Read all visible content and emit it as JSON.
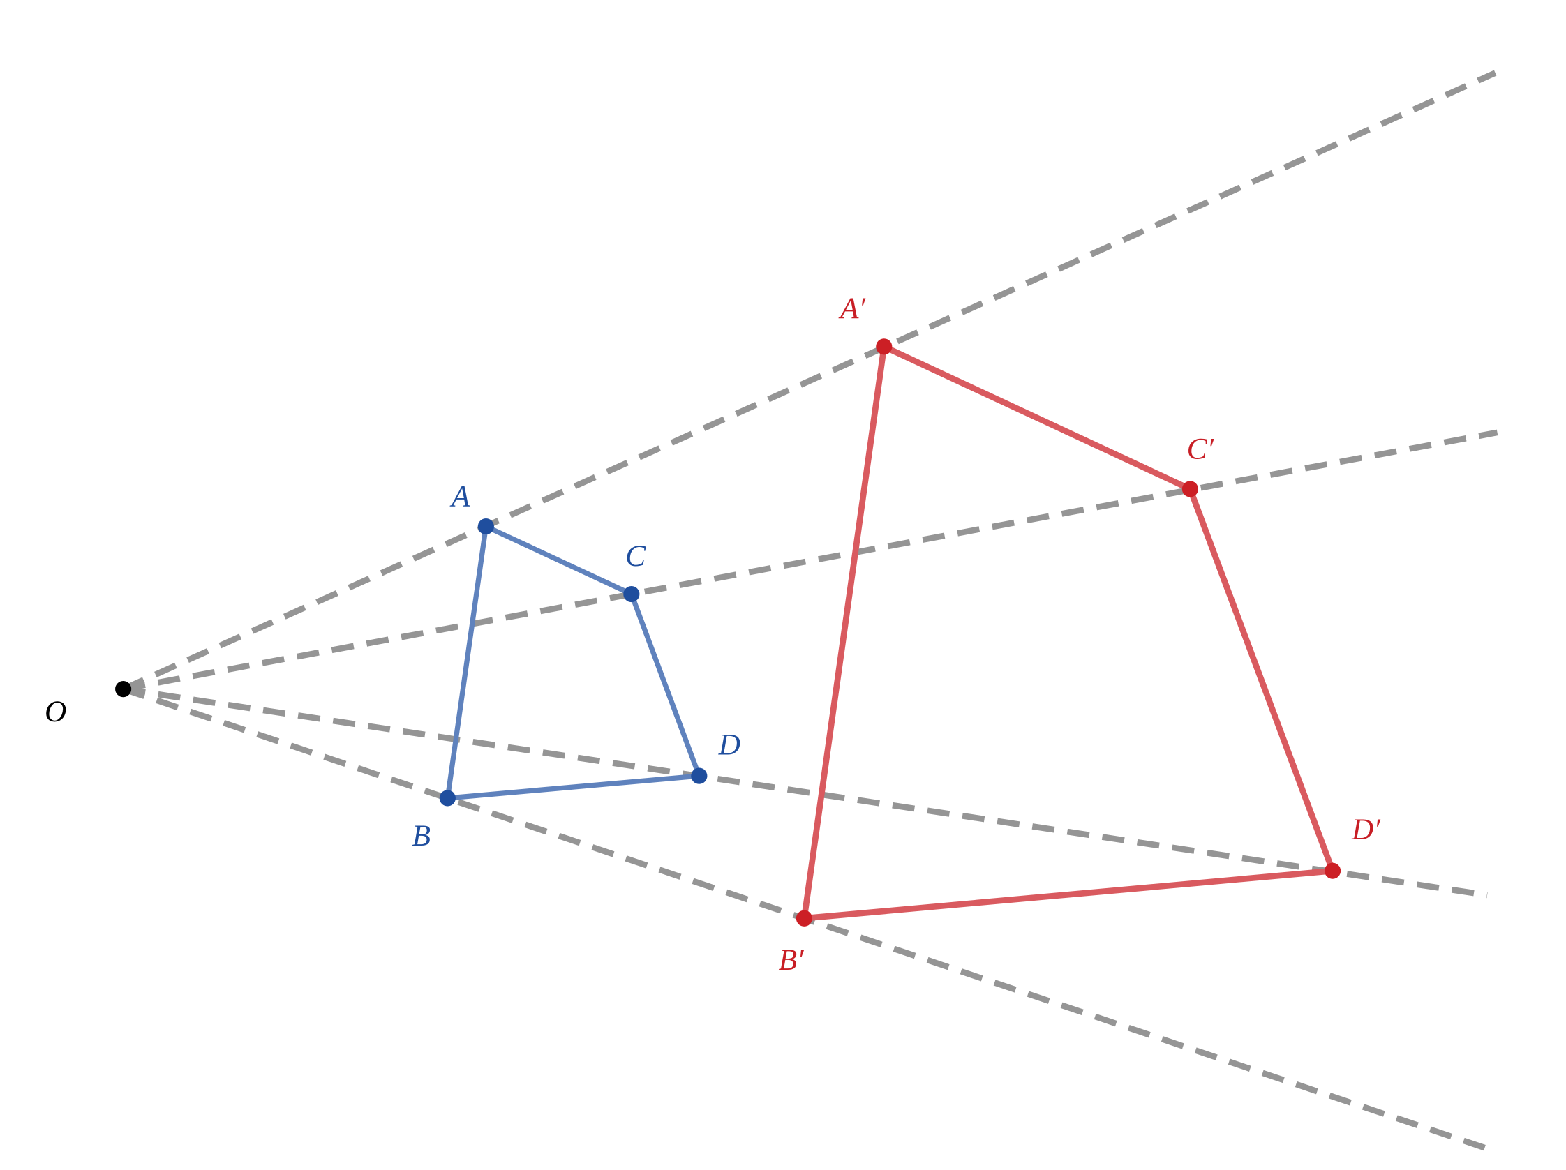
{
  "nodes": [
    {
      "label": "O"
    },
    {
      "label": "A"
    },
    {
      "label": "B"
    },
    {
      "label": "C"
    },
    {
      "label": "D"
    },
    {
      "label": "A′"
    },
    {
      "label": "B′"
    },
    {
      "label": "C′"
    },
    {
      "label": "D′"
    }
  ]
}
